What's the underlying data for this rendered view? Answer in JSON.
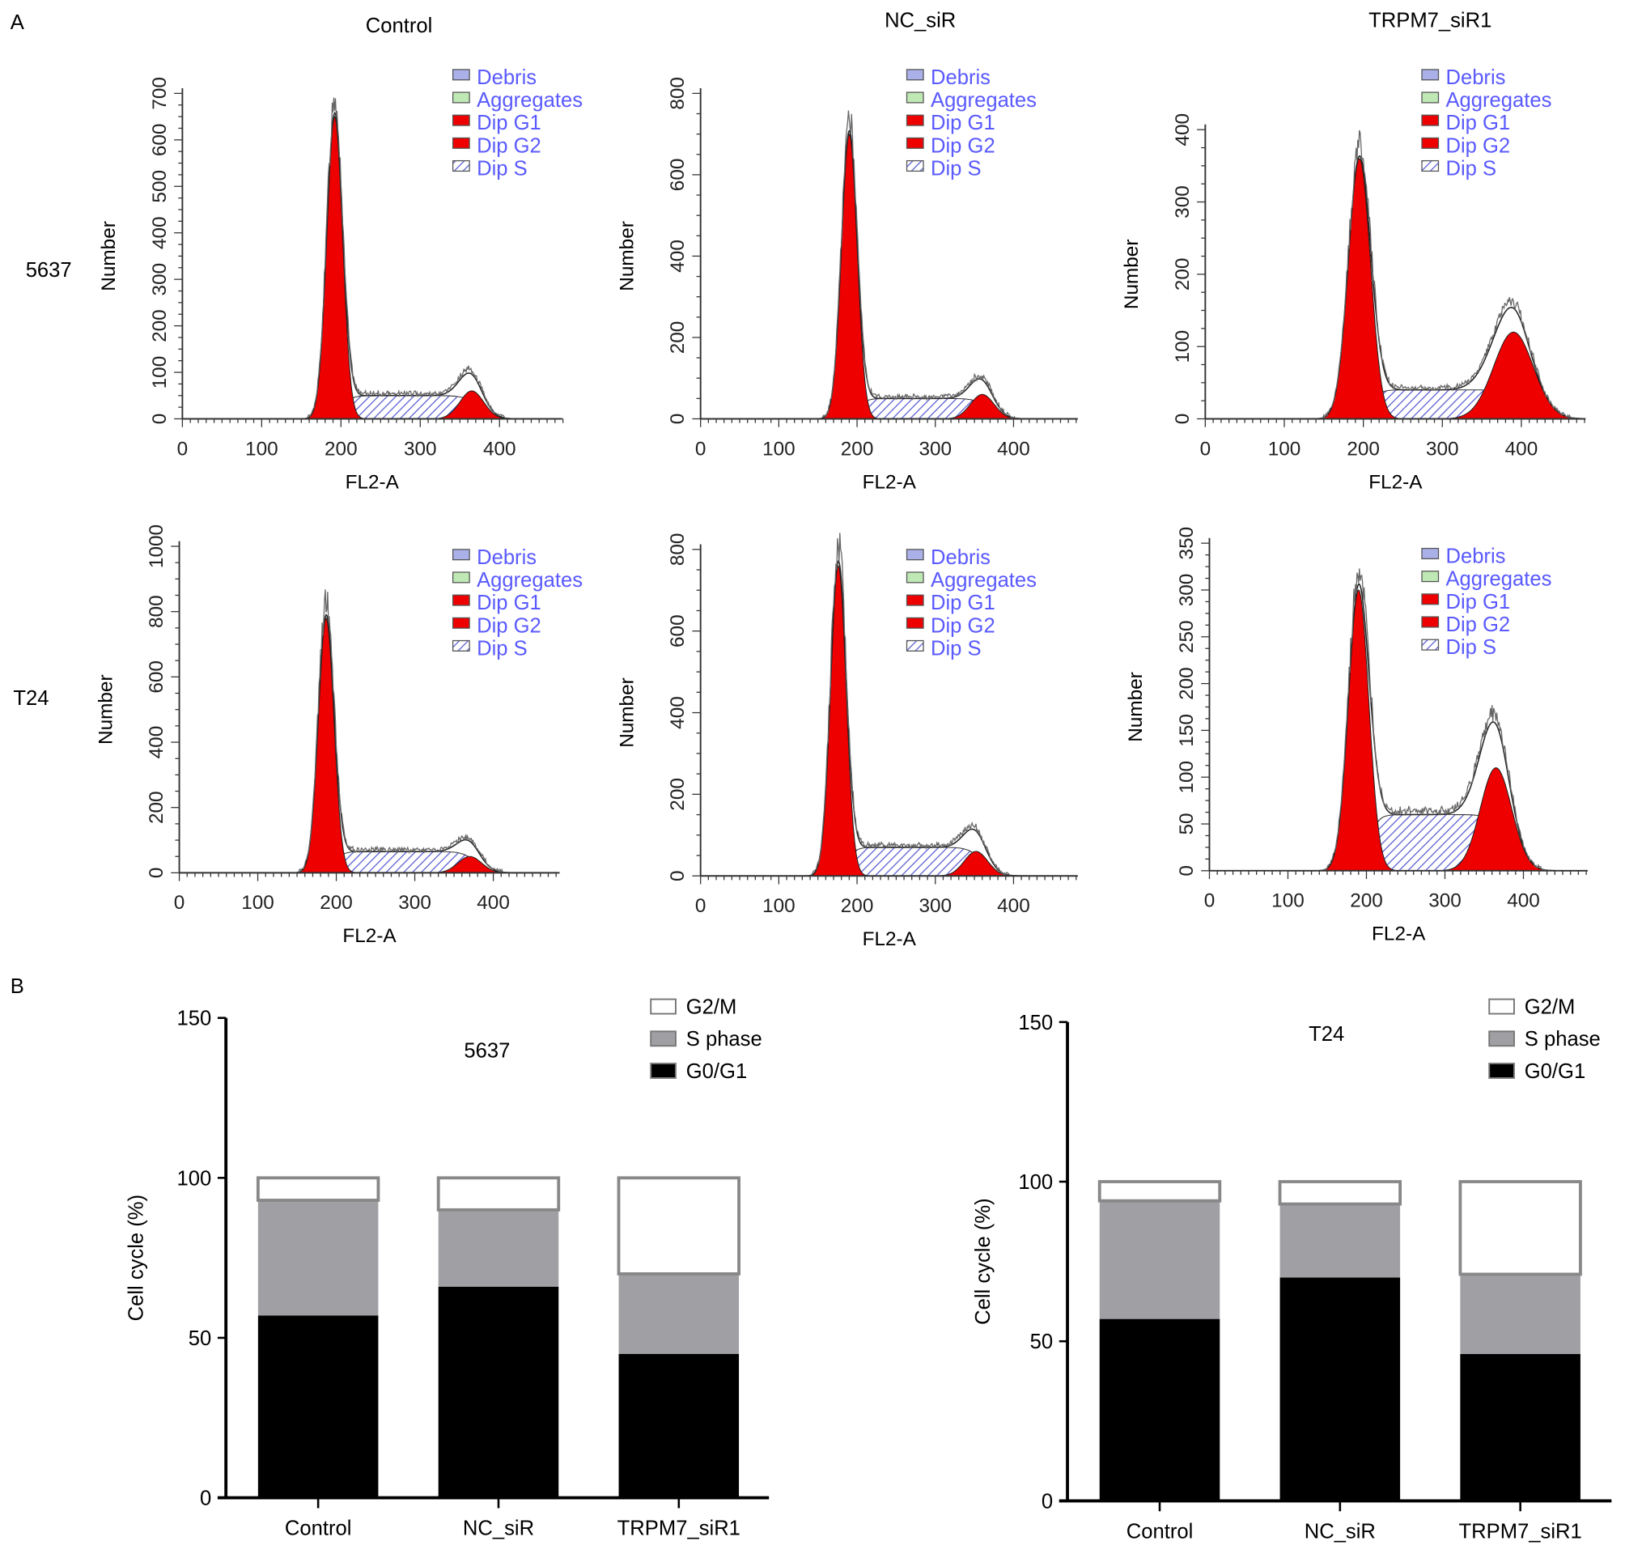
{
  "panel_labels": {
    "a": "A",
    "b": "B"
  },
  "column_titles": [
    "Control",
    "NC_siR",
    "TRPM7_siR1"
  ],
  "row_labels": [
    "5637",
    "T24"
  ],
  "colors": {
    "g1g2": "#ee0000",
    "s_hatch": "#5a5fd0",
    "legend_text": "#5a5aff",
    "debris": "#aab0e8",
    "aggregates": "#bfe8b5",
    "s_phase_bar": "#a0a0a4",
    "g0g1_bar": "#000000",
    "g2m_bar": "#ffffff"
  },
  "histogram_legend": [
    "Debris",
    "Aggregates",
    "Dip G1",
    "Dip G2",
    "Dip S"
  ],
  "chart_data": [
    {
      "type": "area",
      "panel": "A",
      "row": "5637",
      "column": "Control",
      "xlabel": "FL2-A",
      "ylabel": "Number",
      "xlim": [
        0,
        480
      ],
      "ylim": [
        0,
        700
      ],
      "xticks": [
        0,
        100,
        200,
        300,
        400
      ],
      "yticks": [
        0,
        100,
        200,
        300,
        400,
        500,
        600,
        700
      ],
      "g1": {
        "mean": 192,
        "sd": 10,
        "peak": 650
      },
      "g2": {
        "mean": 365,
        "sd": 15,
        "peak": 60
      },
      "s_level": 50
    },
    {
      "type": "area",
      "panel": "A",
      "row": "5637",
      "column": "NC_siR",
      "xlabel": "FL2-A",
      "ylabel": "Number",
      "xlim": [
        0,
        480
      ],
      "ylim": [
        0,
        800
      ],
      "xticks": [
        0,
        100,
        200,
        300,
        400
      ],
      "yticks": [
        0,
        200,
        400,
        600,
        800
      ],
      "g1": {
        "mean": 190,
        "sd": 10,
        "peak": 700
      },
      "g2": {
        "mean": 360,
        "sd": 15,
        "peak": 60
      },
      "s_level": 50
    },
    {
      "type": "area",
      "panel": "A",
      "row": "5637",
      "column": "TRPM7_siR1",
      "xlabel": "FL2-A",
      "ylabel": "Number",
      "xlim": [
        0,
        480
      ],
      "ylim": [
        0,
        400
      ],
      "xticks": [
        0,
        100,
        200,
        300,
        400
      ],
      "yticks": [
        0,
        100,
        200,
        300,
        400
      ],
      "g1": {
        "mean": 195,
        "sd": 14,
        "peak": 360
      },
      "g2": {
        "mean": 390,
        "sd": 25,
        "peak": 120
      },
      "s_level": 40
    },
    {
      "type": "area",
      "panel": "A",
      "row": "T24",
      "column": "Control",
      "xlabel": "FL2-A",
      "ylabel": "Number",
      "xlim": [
        0,
        480
      ],
      "ylim": [
        0,
        1000
      ],
      "xticks": [
        0,
        100,
        200,
        300,
        400
      ],
      "yticks": [
        0,
        200,
        400,
        600,
        800,
        1000
      ],
      "g1": {
        "mean": 187,
        "sd": 10,
        "peak": 780
      },
      "g2": {
        "mean": 370,
        "sd": 15,
        "peak": 50
      },
      "s_level": 65
    },
    {
      "type": "area",
      "panel": "A",
      "row": "T24",
      "column": "NC_siR",
      "xlabel": "FL2-A",
      "ylabel": "Number",
      "xlim": [
        0,
        480
      ],
      "ylim": [
        0,
        800
      ],
      "xticks": [
        0,
        100,
        200,
        300,
        400
      ],
      "yticks": [
        0,
        200,
        400,
        600,
        800
      ],
      "g1": {
        "mean": 176,
        "sd": 10,
        "peak": 760
      },
      "g2": {
        "mean": 352,
        "sd": 15,
        "peak": 60
      },
      "s_level": 70
    },
    {
      "type": "area",
      "panel": "A",
      "row": "T24",
      "column": "TRPM7_siR1",
      "xlabel": "FL2-A",
      "ylabel": "Number",
      "xlim": [
        0,
        480
      ],
      "ylim": [
        0,
        350
      ],
      "xticks": [
        0,
        100,
        200,
        300,
        400
      ],
      "yticks": [
        0,
        50,
        100,
        150,
        200,
        250,
        300,
        350
      ],
      "g1": {
        "mean": 190,
        "sd": 13,
        "peak": 300
      },
      "g2": {
        "mean": 365,
        "sd": 20,
        "peak": 110
      },
      "s_level": 60
    },
    {
      "type": "bar",
      "stacked": true,
      "panel": "B",
      "title": "5637",
      "ylabel": "Cell cycle (%)",
      "ylim": [
        0,
        150
      ],
      "yticks": [
        0,
        50,
        100,
        150
      ],
      "categories": [
        "Control",
        "NC_siR",
        "TRPM7_siR1"
      ],
      "series": [
        {
          "name": "G0/G1",
          "values": [
            57,
            66,
            45
          ]
        },
        {
          "name": "S phase",
          "values": [
            36,
            24,
            25
          ]
        },
        {
          "name": "G2/M",
          "values": [
            7,
            10,
            30
          ]
        }
      ],
      "legend_order": [
        "G2/M",
        "S phase",
        "G0/G1"
      ]
    },
    {
      "type": "bar",
      "stacked": true,
      "panel": "B",
      "title": "T24",
      "ylabel": "Cell cycle (%)",
      "ylim": [
        0,
        150
      ],
      "yticks": [
        0,
        50,
        100,
        150
      ],
      "categories": [
        "Control",
        "NC_siR",
        "TRPM7_siR1"
      ],
      "series": [
        {
          "name": "G0/G1",
          "values": [
            57,
            70,
            46
          ]
        },
        {
          "name": "S phase",
          "values": [
            37,
            23,
            25
          ]
        },
        {
          "name": "G2/M",
          "values": [
            6,
            7,
            29
          ]
        }
      ],
      "legend_order": [
        "G2/M",
        "S phase",
        "G0/G1"
      ]
    }
  ]
}
